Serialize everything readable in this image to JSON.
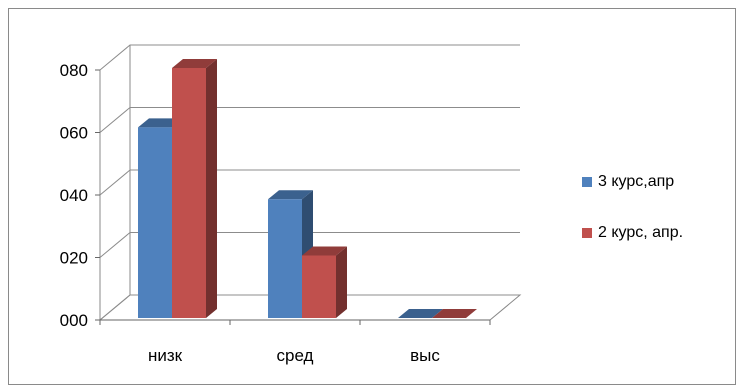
{
  "chart_data": {
    "type": "bar",
    "categories": [
      "низк",
      "сред",
      "выс"
    ],
    "series": [
      {
        "name": "3 курс,апр",
        "values": [
          61,
          38,
          0
        ],
        "color": "#4f81bd"
      },
      {
        "name": "2 курс, апр.",
        "values": [
          80,
          20,
          0
        ],
        "color": "#c0504d"
      }
    ],
    "yticks": [
      "000",
      "020",
      "040",
      "060",
      "080"
    ],
    "ylim": [
      0,
      80
    ],
    "grid": true,
    "legend_position": "right",
    "three_d": true
  }
}
